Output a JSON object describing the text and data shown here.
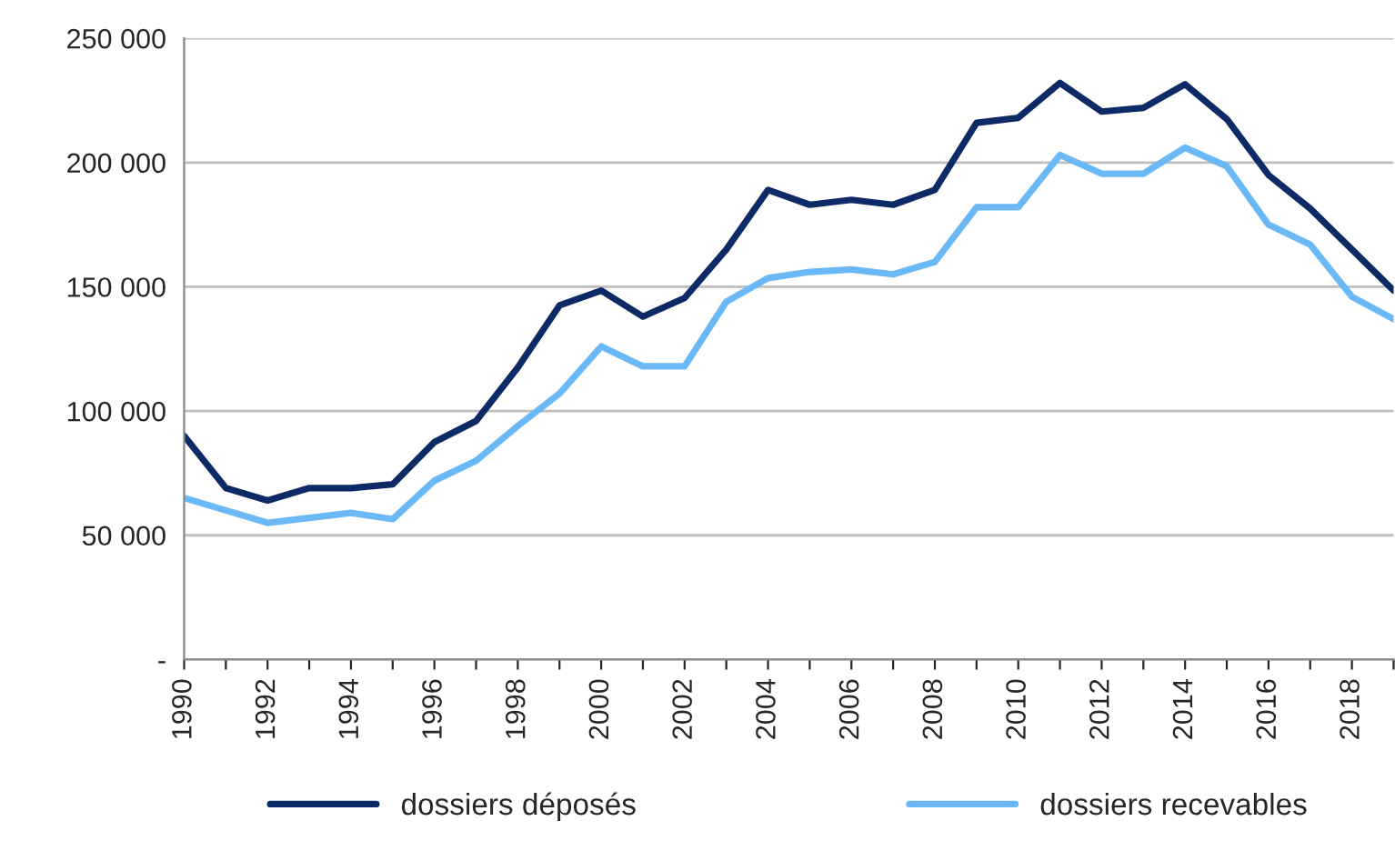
{
  "chart_data": {
    "type": "line",
    "categories": [
      "1990",
      null,
      "1992",
      null,
      "1994",
      null,
      "1996",
      null,
      "1998",
      null,
      "2000",
      null,
      "2002",
      null,
      "2004",
      null,
      "2006",
      null,
      "2008",
      null,
      "2010",
      null,
      "2012",
      null,
      "2014",
      null,
      "2016",
      null,
      "2018",
      null
    ],
    "series": [
      {
        "name": "dossiers déposés",
        "color": "#0e2a66",
        "values": [
          90000,
          69000,
          64000,
          69000,
          69000,
          70500,
          87500,
          96000,
          117500,
          142500,
          148500,
          138000,
          145500,
          165000,
          189000,
          183000,
          185000,
          183000,
          189000,
          216000,
          218000,
          232000,
          220500,
          222000,
          231500,
          217500,
          195000,
          181500,
          165000,
          148500
        ]
      },
      {
        "name": "dossiers recevables",
        "color": "#6ab8f5",
        "values": [
          65000,
          60000,
          55000,
          57000,
          59000,
          56500,
          72000,
          80000,
          94000,
          107000,
          126000,
          118000,
          118000,
          144000,
          153500,
          156000,
          157000,
          155000,
          160000,
          182000,
          182000,
          203000,
          195500,
          195500,
          206000,
          198500,
          175000,
          167000,
          146000,
          137000
        ]
      }
    ],
    "ylim": [
      0,
      250000
    ],
    "yticks": [
      {
        "value": 0,
        "label": "-"
      },
      {
        "value": 50000,
        "label": "50 000"
      },
      {
        "value": 100000,
        "label": "100 000"
      },
      {
        "value": 150000,
        "label": "150 000"
      },
      {
        "value": 200000,
        "label": "200 000"
      },
      {
        "value": 250000,
        "label": "250 000"
      }
    ],
    "grid": "y",
    "legend": "bottom",
    "marker": "none",
    "line_style": "solid"
  }
}
